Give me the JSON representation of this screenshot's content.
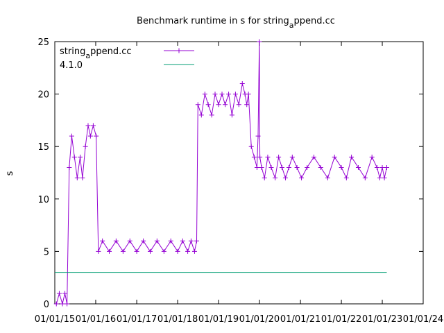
{
  "chart_data": {
    "type": "line",
    "title": "Benchmark runtime in s for string_append.cc",
    "title_parts": {
      "pre": "Benchmark runtime in s for string",
      "sub": "a",
      "post": "ppend.cc"
    },
    "xlabel": "",
    "ylabel": "s",
    "x_tick_labels": [
      "01/01/15",
      "01/01/16",
      "01/01/17",
      "01/01/18",
      "01/01/19",
      "01/01/20",
      "01/01/21",
      "01/01/22",
      "01/01/23",
      "01/01/24"
    ],
    "x_ticks": [
      "2015-01-01",
      "2016-01-01",
      "2017-01-01",
      "2018-01-01",
      "2019-01-01",
      "2020-01-01",
      "2021-01-01",
      "2022-01-01",
      "2023-01-01",
      "2024-01-01"
    ],
    "xlim": [
      "2015-01-01",
      "2024-01-01"
    ],
    "ylim": [
      0,
      25
    ],
    "y_ticks": [
      0,
      5,
      10,
      15,
      20,
      25
    ],
    "grid": false,
    "legend_position": "top-left",
    "series": [
      {
        "name": "string_append.cc",
        "name_parts": {
          "pre": "string",
          "sub": "a",
          "post": "ppend.cc"
        },
        "color": "#9400d3",
        "marker": "plus",
        "x": [
          "2015-01-15",
          "2015-02-10",
          "2015-03-10",
          "2015-04-01",
          "2015-04-20",
          "2015-05-10",
          "2015-06-01",
          "2015-06-25",
          "2015-07-20",
          "2015-08-15",
          "2015-09-05",
          "2015-10-01",
          "2015-10-25",
          "2015-11-15",
          "2015-12-10",
          "2016-01-05",
          "2016-01-25",
          "2016-03-01",
          "2016-05-01",
          "2016-07-01",
          "2016-09-01",
          "2016-11-01",
          "2017-01-01",
          "2017-03-01",
          "2017-05-01",
          "2017-07-01",
          "2017-09-01",
          "2017-11-01",
          "2018-01-01",
          "2018-02-15",
          "2018-04-01",
          "2018-05-01",
          "2018-06-01",
          "2018-06-20",
          "2018-07-01",
          "2018-08-01",
          "2018-09-01",
          "2018-10-01",
          "2018-11-01",
          "2018-12-01",
          "2019-01-01",
          "2019-02-01",
          "2019-03-01",
          "2019-04-01",
          "2019-05-01",
          "2019-06-01",
          "2019-07-01",
          "2019-08-01",
          "2019-08-25",
          "2019-09-10",
          "2019-09-25",
          "2019-10-20",
          "2019-11-15",
          "2019-12-10",
          "2019-12-20",
          "2019-12-31",
          "2020-01-05",
          "2020-01-20",
          "2020-02-15",
          "2020-03-15",
          "2020-04-15",
          "2020-05-20",
          "2020-06-20",
          "2020-07-20",
          "2020-08-20",
          "2020-09-20",
          "2020-10-20",
          "2020-12-01",
          "2021-01-10",
          "2021-03-01",
          "2021-05-01",
          "2021-07-01",
          "2021-09-01",
          "2021-11-01",
          "2022-01-01",
          "2022-02-15",
          "2022-04-01",
          "2022-06-01",
          "2022-08-01",
          "2022-10-01",
          "2022-11-15",
          "2022-12-10",
          "2023-01-01",
          "2023-01-20",
          "2023-02-10"
        ],
        "values": [
          0,
          1,
          0,
          1,
          0,
          13,
          16,
          14,
          12,
          14,
          12,
          15,
          17,
          16,
          17,
          16,
          5,
          6,
          5,
          6,
          5,
          6,
          5,
          6,
          5,
          6,
          5,
          6,
          5,
          6,
          5,
          6,
          5,
          6,
          19,
          18,
          20,
          19,
          18,
          20,
          19,
          20,
          19,
          20,
          18,
          20,
          19,
          21,
          20,
          19,
          20,
          15,
          14,
          13,
          16,
          25,
          14,
          13,
          12,
          14,
          13,
          12,
          14,
          13,
          12,
          13,
          14,
          13,
          12,
          13,
          14,
          13,
          12,
          14,
          13,
          12,
          14,
          13,
          12,
          14,
          13,
          12,
          13,
          12,
          13
        ]
      },
      {
        "name": "4.1.0",
        "color": "#009e73",
        "marker": "none",
        "x": [
          "2015-01-01",
          "2023-02-10"
        ],
        "values": [
          3,
          3
        ]
      }
    ]
  }
}
